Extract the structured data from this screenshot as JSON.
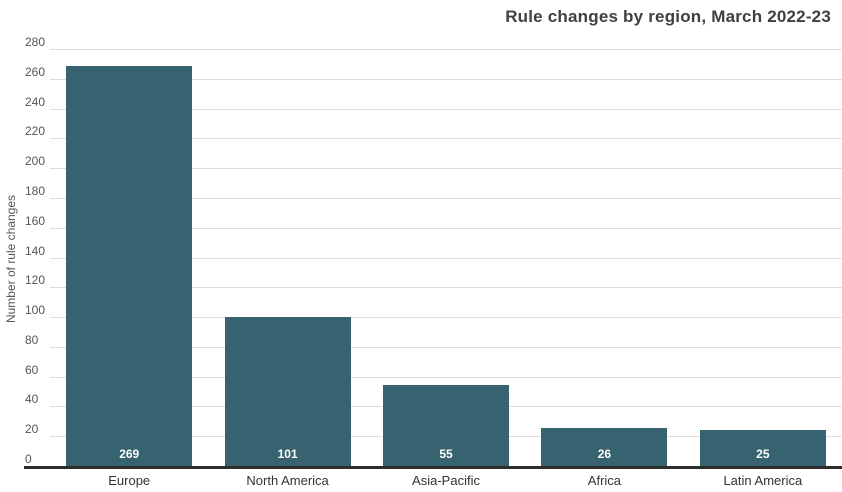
{
  "title": "Rule changes by region, March 2022-23",
  "chart_data": {
    "type": "bar",
    "title": "Rule changes by region, March 2022-23",
    "categories": [
      "Europe",
      "North America",
      "Asia-Pacific",
      "Africa",
      "Latin America"
    ],
    "values": [
      269,
      101,
      55,
      26,
      25
    ],
    "value_labels": [
      "269",
      "101",
      "55",
      "26",
      "25"
    ],
    "xlabel": "",
    "ylabel": "Number of rule changes",
    "ylim": [
      0,
      280
    ],
    "yticks": [
      0,
      20,
      40,
      60,
      80,
      100,
      120,
      140,
      160,
      180,
      200,
      220,
      240,
      260,
      280
    ],
    "grid": "horizontal",
    "legend": "none"
  },
  "colors": {
    "background": "#FFFFFF",
    "bar": "#36636F",
    "title_text": "#404040",
    "axis_text": "#555555",
    "category_text": "#333333",
    "gridline": "#DDDDDD",
    "baseline": "#2D2D2D",
    "value_label": "#FFFFFF"
  }
}
